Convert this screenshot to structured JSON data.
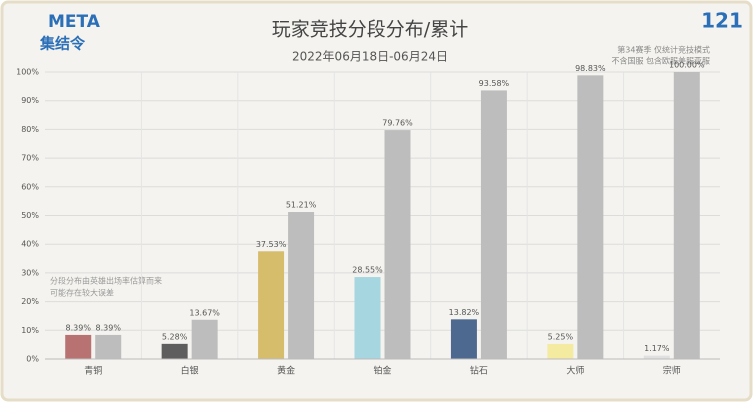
{
  "logo": {
    "line1": "META",
    "line2": "集结令"
  },
  "episode": "121",
  "chart_data": {
    "type": "bar",
    "title": "玩家竞技分段分布/累计",
    "subtitle": "2022年06月18日-06月24日",
    "notes": [
      "第34赛季 仅统计竞技模式",
      "不含国服 包含欧服美服亚服"
    ],
    "annotation": [
      "分段分布由英雄出场率估算而来",
      "可能存在较大误差"
    ],
    "categories": [
      "青铜",
      "白银",
      "黄金",
      "铂金",
      "钻石",
      "大师",
      "宗师"
    ],
    "series": [
      {
        "colors": [
          "#b87272",
          "#5e5e5e",
          "#d6bd6c",
          "#a6d6df",
          "#4e6990",
          "#f4eba0",
          "#e0e0e0"
        ],
        "values": [
          8.39,
          5.28,
          37.53,
          28.55,
          13.82,
          5.25,
          1.17
        ],
        "value_labels": [
          "8.39%",
          "5.28%",
          "37.53%",
          "28.55%",
          "13.82%",
          "5.25%",
          "1.17%"
        ]
      },
      {
        "color": "#bdbdbd",
        "values": [
          8.39,
          13.67,
          51.21,
          79.76,
          93.58,
          98.83,
          100.0
        ],
        "value_labels": [
          "8.39%",
          "13.67%",
          "51.21%",
          "79.76%",
          "93.58%",
          "98.83%",
          "100.00%"
        ]
      }
    ],
    "ylim": [
      0,
      100
    ],
    "yticks": [
      {
        "value": 0,
        "label": "0%"
      },
      {
        "value": 10,
        "label": "10%"
      },
      {
        "value": 20,
        "label": "20%"
      },
      {
        "value": 30,
        "label": "30%"
      },
      {
        "value": 40,
        "label": "40%"
      },
      {
        "value": 50,
        "label": "50%"
      },
      {
        "value": 60,
        "label": "60%"
      },
      {
        "value": 70,
        "label": "70%"
      },
      {
        "value": 80,
        "label": "80%"
      },
      {
        "value": 90,
        "label": "90%"
      },
      {
        "value": 100,
        "label": "100%"
      }
    ],
    "grid": true
  }
}
